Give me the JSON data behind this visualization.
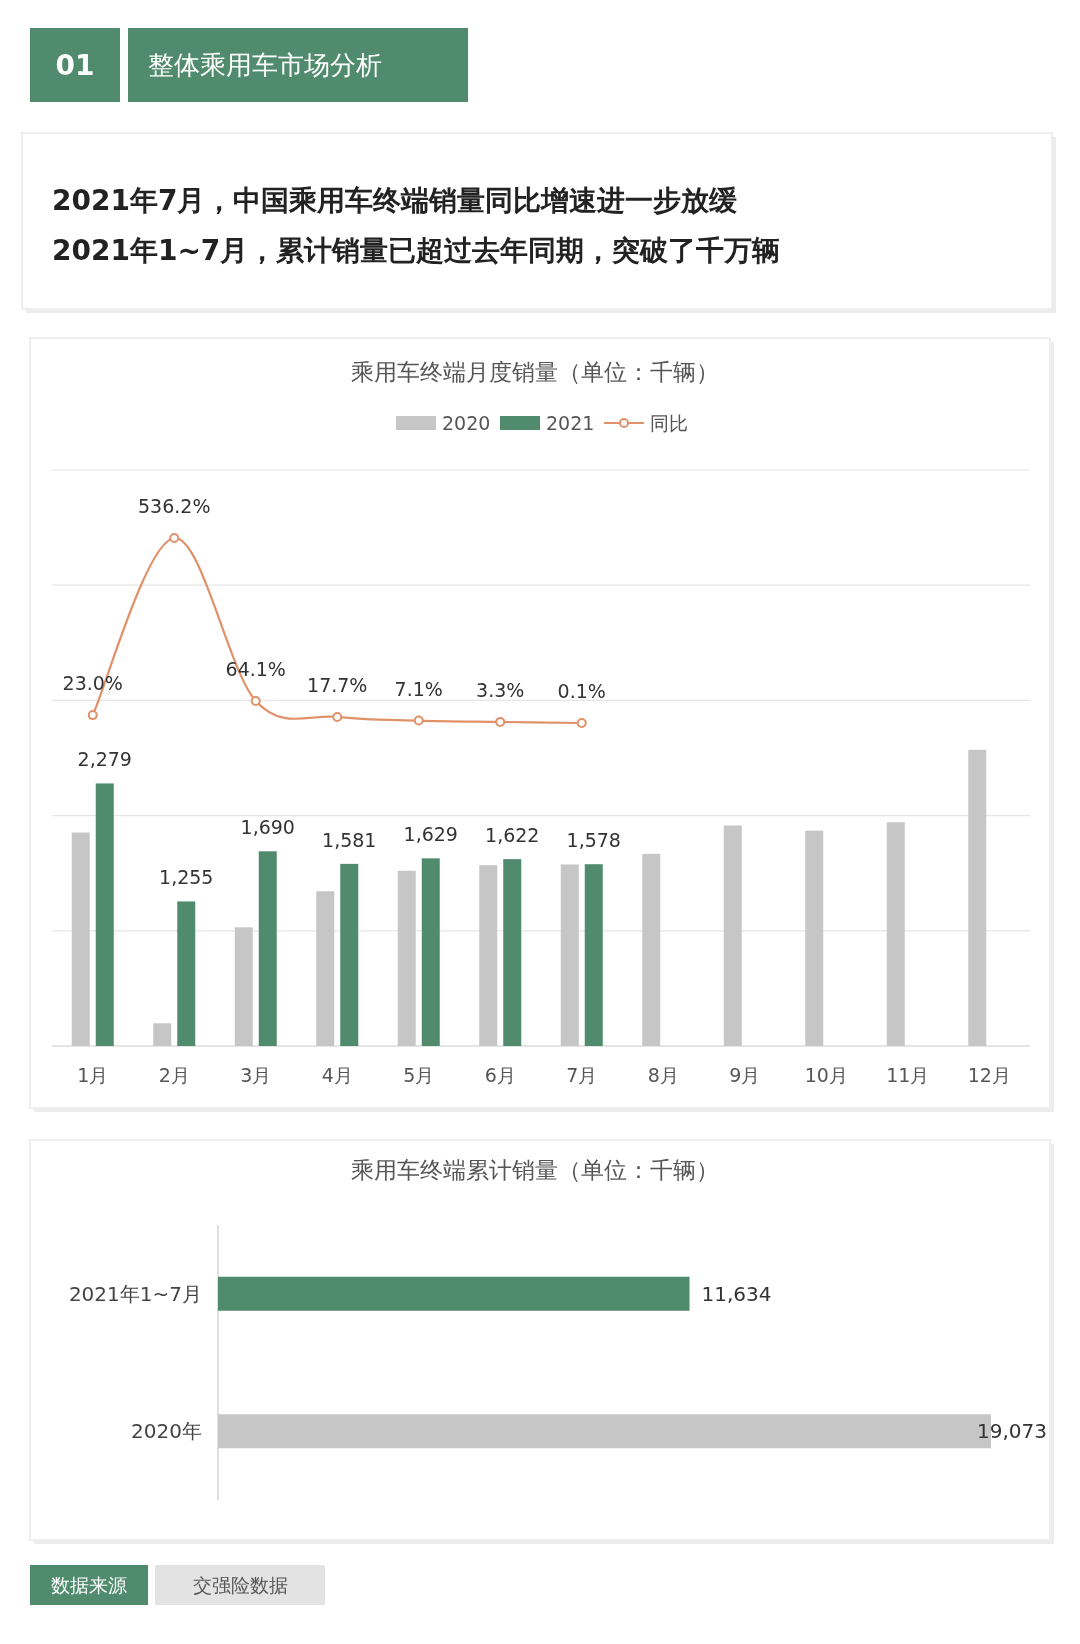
{
  "chart_data": [
    {
      "type": "bar",
      "title": "乘用车终端月度销量（单位：千辆）",
      "annotations": [
        "01",
        "整体乘用车市场分析",
        "2021年7月，中国乘用车终端销量同比增速进一步放缓",
        "2021年1~7月，累计销量已超过去年同期，突破了千万辆"
      ],
      "categories": [
        "1月",
        "2月",
        "3月",
        "4月",
        "5月",
        "6月",
        "7月",
        "8月",
        "9月",
        "10月",
        "11月",
        "12月"
      ],
      "series": [
        {
          "name": "2020",
          "color": "#c6c6c6",
          "values": [
            1853,
            197,
            1030,
            1343,
            1521,
            1570,
            1576,
            1668,
            1914,
            1869,
            1942,
            2571
          ]
        },
        {
          "name": "2021",
          "color": "#4f8b6c",
          "values": [
            2279,
            1255,
            1690,
            1581,
            1629,
            1622,
            1578,
            null,
            null,
            null,
            null,
            null
          ],
          "value_labels": [
            "2,279",
            "1,255",
            "1,690",
            "1,581",
            "1,629",
            "1,622",
            "1,578",
            null,
            null,
            null,
            null,
            null
          ]
        },
        {
          "name": "同比",
          "type": "line",
          "axis": "y2",
          "color": "#e0916a",
          "marker": "circle",
          "values": [
            23.0,
            536.2,
            64.1,
            17.7,
            7.1,
            3.3,
            0.1,
            null,
            null,
            null,
            null,
            null
          ],
          "value_labels": [
            "23.0%",
            "536.2%",
            "64.1%",
            "17.7%",
            "7.1%",
            "3.3%",
            "0.1%",
            null,
            null,
            null,
            null,
            null
          ]
        }
      ],
      "ylim": [
        0,
        5000
      ],
      "yticks": [
        {
          "value": 0,
          "label": null
        },
        {
          "value": 1000,
          "label": null
        },
        {
          "value": 2000,
          "label": null
        },
        {
          "value": 3000,
          "label": null
        },
        {
          "value": 4000,
          "label": null
        },
        {
          "value": 5000,
          "label": null
        }
      ],
      "grid": "y",
      "legend": "top",
      "tick_labels": "x"
    },
    {
      "type": "bar",
      "orientation": "horizontal",
      "title": "乘用车终端累计销量（单位：千辆）",
      "annotations": [
        "数据来源",
        "交强险数据"
      ],
      "categories": [
        "2021年1~7月",
        "2020年"
      ],
      "values": [
        11634,
        19073
      ],
      "colors": [
        "#4f8b6c",
        "#c6c6c6"
      ],
      "value_labels": [
        "11,634",
        "19,073"
      ],
      "tick_labels": "y"
    }
  ]
}
